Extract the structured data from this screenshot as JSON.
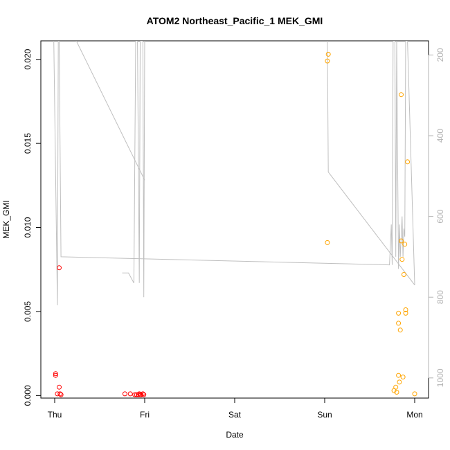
{
  "chart_data": {
    "type": "scatter",
    "title": "ATOM2 Northeast_Pacific_1 MEK_GMI",
    "xlabel": "Date",
    "ylabel": "MEK_GMI",
    "x_ticks": [
      {
        "label": "Thu",
        "day": 0
      },
      {
        "label": "Fri",
        "day": 1
      },
      {
        "label": "Sat",
        "day": 2
      },
      {
        "label": "Sun",
        "day": 3
      },
      {
        "label": "Mon",
        "day": 4
      }
    ],
    "x_range_days": [
      -0.2,
      4.16
    ],
    "ylim": [
      -0.00015,
      0.0211
    ],
    "y_ticks": [
      {
        "value": 0.0,
        "label": "0.000"
      },
      {
        "value": 0.005,
        "label": "0.005"
      },
      {
        "value": 0.01,
        "label": "0.010"
      },
      {
        "value": 0.015,
        "label": "0.015"
      },
      {
        "value": 0.02,
        "label": "0.020"
      }
    ],
    "right_axis": {
      "range": [
        1050,
        165
      ],
      "reversed": true,
      "ticks": [
        {
          "value": 200,
          "label": "200"
        },
        {
          "value": 400,
          "label": "400"
        },
        {
          "value": 600,
          "label": "600"
        },
        {
          "value": 800,
          "label": "800"
        },
        {
          "value": 1000,
          "label": "1000"
        }
      ],
      "color": "#b3b3b3"
    },
    "series": [
      {
        "color": "#ff0000",
        "marker": "open-circle",
        "points": [
          {
            "x": 0.01,
            "y": 0.0013
          },
          {
            "x": 0.01,
            "y": 0.0012
          },
          {
            "x": 0.03,
            "y": 0.0001
          },
          {
            "x": 0.05,
            "y": 0.0005
          },
          {
            "x": 0.06,
            "y": 0.0001
          },
          {
            "x": 0.07,
            "y": 5e-05
          },
          {
            "x": 0.05,
            "y": 0.0076
          },
          {
            "x": 0.78,
            "y": 0.0001
          },
          {
            "x": 0.84,
            "y": 0.0001
          },
          {
            "x": 0.89,
            "y": 5e-05
          },
          {
            "x": 0.91,
            "y": 5e-05
          },
          {
            "x": 0.93,
            "y": 5e-05
          },
          {
            "x": 0.94,
            "y": 0.0001
          },
          {
            "x": 0.95,
            "y": 5e-05
          },
          {
            "x": 0.96,
            "y": 5e-05
          },
          {
            "x": 0.98,
            "y": 0.0001
          },
          {
            "x": 0.99,
            "y": 5e-05
          }
        ]
      },
      {
        "color": "#ffa500",
        "marker": "open-circle",
        "points": [
          {
            "x": 3.03,
            "y": 0.0199
          },
          {
            "x": 3.04,
            "y": 0.0203
          },
          {
            "x": 3.03,
            "y": 0.0091
          },
          {
            "x": 3.77,
            "y": 0.0003
          },
          {
            "x": 3.79,
            "y": 0.0005
          },
          {
            "x": 3.8,
            "y": 0.0002
          },
          {
            "x": 3.82,
            "y": 0.0012
          },
          {
            "x": 3.82,
            "y": 0.0049
          },
          {
            "x": 3.82,
            "y": 0.0043
          },
          {
            "x": 3.83,
            "y": 0.0008
          },
          {
            "x": 3.84,
            "y": 0.0039
          },
          {
            "x": 3.85,
            "y": 0.0179
          },
          {
            "x": 3.85,
            "y": 0.0092
          },
          {
            "x": 3.86,
            "y": 0.0081
          },
          {
            "x": 3.87,
            "y": 0.0011
          },
          {
            "x": 3.88,
            "y": 0.0072
          },
          {
            "x": 3.89,
            "y": 0.009
          },
          {
            "x": 3.9,
            "y": 0.0049
          },
          {
            "x": 3.9,
            "y": 0.0051
          },
          {
            "x": 3.92,
            "y": 0.0139
          },
          {
            "x": 4.0,
            "y": 0.0001
          }
        ]
      }
    ],
    "altitude_trace": {
      "color": "#bfbfbf",
      "points": [
        {
          "x": -0.01,
          "p": 165
        },
        {
          "x": 0.03,
          "p": 820
        },
        {
          "x": 0.04,
          "p": 165
        },
        {
          "x": 0.05,
          "p": 165
        },
        {
          "x": 0.07,
          "p": 700
        },
        {
          "x": 3.72,
          "p": 720
        },
        {
          "x": 3.74,
          "p": 620
        },
        {
          "x": 3.75,
          "p": 720
        },
        {
          "x": 3.76,
          "p": 165
        },
        {
          "x": 3.78,
          "p": 165
        },
        {
          "x": 3.79,
          "p": 700
        },
        {
          "x": 3.8,
          "p": 165
        },
        {
          "x": 3.82,
          "p": 730
        },
        {
          "x": 3.83,
          "p": 620
        },
        {
          "x": 3.84,
          "p": 700
        },
        {
          "x": 3.86,
          "p": 600
        },
        {
          "x": 3.87,
          "p": 700
        },
        {
          "x": 3.88,
          "p": 630
        },
        {
          "x": 3.89,
          "p": 650
        },
        {
          "x": 3.9,
          "p": 165
        },
        {
          "x": 3.92,
          "p": 165
        },
        {
          "x": 4.0,
          "p": 770
        }
      ],
      "segments": [
        [
          {
            "x": 0.24,
            "p": 165
          },
          {
            "x": 1.0,
            "p": 510
          }
        ],
        [
          {
            "x": 0.75,
            "p": 740
          },
          {
            "x": 0.82,
            "p": 740
          },
          {
            "x": 0.88,
            "p": 765
          },
          {
            "x": 0.9,
            "p": 165
          },
          {
            "x": 0.92,
            "p": 165
          },
          {
            "x": 0.94,
            "p": 765
          },
          {
            "x": 0.95,
            "p": 165
          },
          {
            "x": 0.98,
            "p": 165
          },
          {
            "x": 0.99,
            "p": 800
          },
          {
            "x": 1.0,
            "p": 165
          }
        ]
      ],
      "sunday_segment": [
        {
          "x": 3.03,
          "p": 165
        },
        {
          "x": 3.04,
          "p": 490
        },
        {
          "x": 4.0,
          "p": 770
        }
      ]
    }
  }
}
